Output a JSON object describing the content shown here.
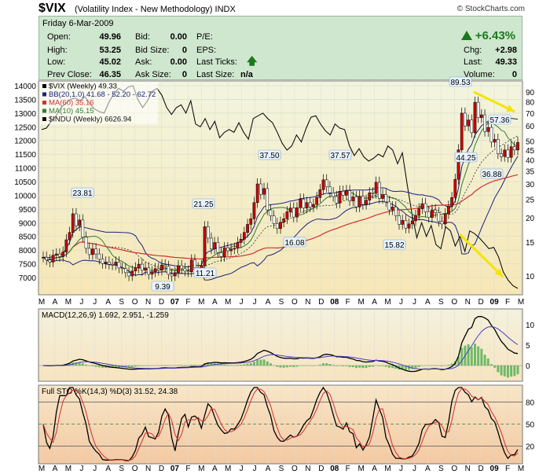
{
  "header": {
    "symbol": "$VIX",
    "subtitle": "(Volatility Index - New Methodology)  INDX",
    "copyright": "© StockCharts.com"
  },
  "quote": {
    "date": "Friday  6-Mar-2009",
    "open_label": "Open:",
    "open": "49.96",
    "high_label": "High:",
    "high": "53.25",
    "low_label": "Low:",
    "low": "45.02",
    "prev_label": "Prev Close:",
    "prev": "46.35",
    "bid_label": "Bid:",
    "bid": "0.00",
    "bidsize_label": "Bid Size:",
    "bidsize": "0",
    "ask_label": "Ask:",
    "ask": "0.00",
    "asksize_label": "Ask Size:",
    "asksize": "0",
    "pe_label": "P/E:",
    "eps_label": "EPS:",
    "ticks_label": "Last Ticks:",
    "lastsize_label": "Last Size:",
    "lastsize": "n/a",
    "pct_change": "+6.43%",
    "chg_label": "Chg:",
    "chg": "+2.98",
    "last_label": "Last:",
    "last": "49.33",
    "volume_label": "Volume:",
    "volume": "0"
  },
  "colors": {
    "up": "#1a7a1a",
    "candle_down": "#cc0000",
    "bb": "#1a237e",
    "ma60": "#d32f2f",
    "ma10": "#2e7d32",
    "indu": "#111111",
    "arrow": "#f5e400",
    "macd_hist": "#4caf50"
  },
  "chart_data": [
    {
      "type": "candlestick",
      "legend": [
        {
          "name": "$VIX (Weekly) 49.33",
          "color": "#000000"
        },
        {
          "name": "BB(20,1.0) 41.68 - 52.20 - 62.72",
          "color": "#1a237e"
        },
        {
          "name": "MA(60) 35.16",
          "color": "#d32f2f"
        },
        {
          "name": "MA(10) 45.15",
          "color": "#2e7d32"
        },
        {
          "name": "$INDU (Weekly) 6626.94",
          "color": "#111111"
        }
      ],
      "left_axis_ticks": [
        "14000",
        "13500",
        "13000",
        "12500",
        "12000",
        "11500",
        "11000",
        "10500",
        "10000",
        "9500",
        "9000",
        "8500",
        "8000",
        "7500",
        "7000"
      ],
      "right_axis_ticks": [
        "90",
        "80",
        "70",
        "60",
        "50",
        "45",
        "40",
        "35",
        "30",
        "25",
        "20",
        "15",
        "10"
      ],
      "months": [
        "M",
        "A",
        "M",
        "J",
        "J",
        "A",
        "S",
        "O",
        "N",
        "D",
        "07",
        "F",
        "M",
        "A",
        "M",
        "J",
        "J",
        "A",
        "S",
        "O",
        "N",
        "D",
        "08",
        "F",
        "M",
        "A",
        "M",
        "J",
        "J",
        "A",
        "S",
        "O",
        "N",
        "D",
        "09",
        "F",
        "M"
      ],
      "annotations": [
        "23.81",
        "9.39",
        "21.25",
        "11.21",
        "37.50",
        "16.08",
        "37.57",
        "15.82",
        "89.53",
        "44.25",
        "57.36",
        "36.88"
      ],
      "vix_close": [
        12.5,
        12.1,
        11.8,
        12.8,
        13.0,
        12.6,
        13.3,
        15.4,
        16.8,
        21.0,
        18.2,
        19.5,
        15.9,
        13.9,
        12.9,
        13.8,
        13.0,
        12.2,
        11.6,
        11.8,
        11.5,
        11.4,
        11.8,
        11.0,
        10.9,
        10.4,
        10.0,
        10.6,
        11.0,
        11.5,
        10.7,
        11.0,
        10.2,
        10.5,
        10.9,
        10.7,
        11.4,
        11.2,
        10.2,
        10.0,
        10.4,
        11.3,
        10.9,
        10.6,
        10.5,
        12.1,
        11.0,
        10.5,
        11.3,
        18.0,
        15.7,
        13.8,
        14.9,
        13.2,
        12.6,
        14.0,
        13.5,
        13.8,
        13.9,
        14.9,
        15.5,
        16.8,
        18.5,
        19.8,
        24.0,
        30.0,
        26.5,
        28.4,
        22.0,
        20.5,
        18.7,
        17.6,
        19.0,
        19.8,
        21.5,
        22.5,
        20.2,
        22.6,
        25.0,
        22.5,
        24.0,
        22.8,
        23.5,
        25.5,
        28.0,
        31.5,
        29.0,
        27.0,
        25.8,
        23.9,
        27.5,
        26.2,
        27.7,
        24.5,
        25.7,
        22.8,
        25.9,
        23.5,
        24.7,
        27.0,
        26.8,
        30.6,
        25.2,
        26.4,
        24.2,
        22.0,
        22.8,
        20.5,
        18.5,
        19.4,
        17.7,
        18.6,
        19.3,
        20.6,
        22.3,
        23.7,
        21.5,
        20.1,
        22.0,
        21.3,
        19.2,
        18.6,
        21.0,
        23.0,
        25.5,
        31.7,
        45.1,
        69.9,
        60.0,
        64.4,
        55.3,
        79.6,
        66.2,
        68.5,
        56.1,
        58.9,
        49.4,
        51.1,
        43.0,
        41.6,
        45.0,
        41.2,
        46.8,
        45.0,
        49.3
      ],
      "indu_close": [
        12400,
        12450,
        12700,
        12900,
        13200,
        13350,
        13500,
        13550,
        13450,
        13600,
        13350,
        13150,
        13050,
        13000,
        13400,
        13700,
        13900,
        13800,
        13950,
        14000,
        13500,
        13200,
        13450,
        13800,
        13900,
        13650,
        13200,
        12950,
        13200,
        13300,
        13000,
        13450,
        12600,
        12500,
        12800,
        12400,
        12700,
        12100,
        12300,
        12400,
        12300,
        12650,
        12300,
        12050,
        12800,
        12900,
        13000,
        12800,
        12650,
        12300,
        11900,
        11650,
        11800,
        12200,
        11950,
        12450,
        12850,
        12900,
        12600,
        12350,
        12200,
        12600,
        12450,
        12400,
        11800,
        11450,
        11700,
        11400,
        11250,
        11350,
        11500,
        11400,
        11800,
        11650,
        11150,
        11550,
        10400,
        9325,
        8450,
        9000,
        8500,
        8900,
        8200,
        8050,
        8850,
        8700,
        8150,
        8500,
        7950,
        8700,
        8600,
        8450,
        8250,
        8050,
        8100,
        7750,
        7200,
        6900,
        6700,
        6600
      ]
    },
    {
      "type": "line",
      "title": "MACD(12,26,9) 1.692, 2.951, -1.259",
      "right_axis_ticks": [
        "10",
        "5",
        "0"
      ]
    },
    {
      "type": "line",
      "title": "Full STO %K(14,3) %D(3) 31.52, 24.38",
      "right_axis_ticks": [
        "80",
        "50",
        "20"
      ]
    }
  ]
}
